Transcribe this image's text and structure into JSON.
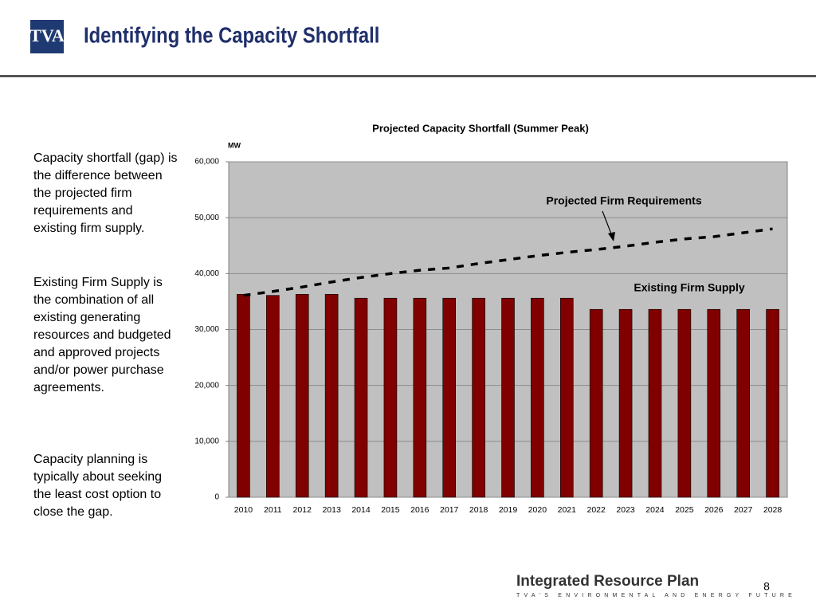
{
  "header": {
    "logo": "TVA",
    "title": "Identifying the Capacity Shortfall"
  },
  "body": {
    "paragraphs": [
      "Capacity shortfall (gap) is the difference between the projected firm requirements and existing firm supply.",
      "Existing Firm Supply is the combination of all existing generating resources and budgeted and approved projects and/or power purchase agreements.",
      "Capacity planning is typically about seeking the least cost option to close the gap."
    ]
  },
  "chart_data": {
    "type": "bar",
    "title": "Projected Capacity Shortfall (Summer Peak)",
    "ylabel": "MW",
    "categories": [
      "2010",
      "2011",
      "2012",
      "2013",
      "2014",
      "2015",
      "2016",
      "2017",
      "2018",
      "2019",
      "2020",
      "2021",
      "2022",
      "2023",
      "2024",
      "2025",
      "2026",
      "2027",
      "2028"
    ],
    "series": [
      {
        "name": "Existing Firm Supply",
        "color": "#800000",
        "type": "bar",
        "values": [
          36300,
          36100,
          36300,
          36300,
          35600,
          35600,
          35600,
          35600,
          35600,
          35600,
          35600,
          35600,
          33600,
          33600,
          33600,
          33600,
          33600,
          33600,
          33600
        ]
      },
      {
        "name": "Projected Firm Requirements",
        "color": "#000000",
        "type": "line",
        "values": [
          36100,
          36800,
          37600,
          38500,
          39300,
          40000,
          40600,
          41000,
          41800,
          42500,
          43200,
          43800,
          44300,
          44900,
          45600,
          46200,
          46600,
          47300,
          48000
        ]
      }
    ],
    "ylim": [
      0,
      60000
    ],
    "yticks": [
      0,
      {
        "value": 10000,
        "label": "10,000"
      },
      {
        "value": 20000,
        "label": "20,000"
      },
      {
        "value": 30000,
        "label": "30,000"
      },
      {
        "value": 40000,
        "label": "40,000"
      },
      {
        "value": 50000,
        "label": "50,000"
      },
      {
        "value": 60000,
        "label": "60,000"
      }
    ],
    "grid": true,
    "background": "#c0c0c0"
  },
  "footer": {
    "brand": "Integrated Resource Plan",
    "tagline": "TVA'S ENVIRONMENTAL AND ENERGY FUTURE",
    "page_number": "8"
  }
}
